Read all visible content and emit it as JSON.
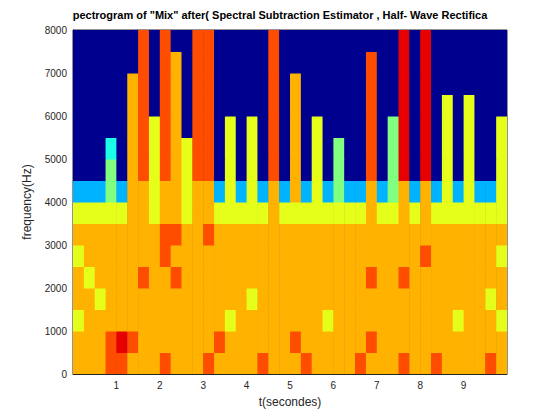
{
  "chart_data": {
    "type": "heatmap",
    "title": "pectrogram of \"Mix\" after( Spectral Subtraction Estimator , Half- Wave Rectifica",
    "x_label": "t(secondes)",
    "y_label": "frequency(Hz)",
    "xlim": [
      0,
      10
    ],
    "xticks": [
      1,
      2,
      3,
      4,
      5,
      6,
      7,
      8,
      9
    ],
    "ylim": [
      0,
      8000
    ],
    "yticks": [
      0,
      1000,
      2000,
      3000,
      4000,
      5000,
      6000,
      7000,
      8000
    ],
    "grid": false,
    "clim": [
      0,
      10
    ],
    "x_bins": [
      0,
      0.25,
      0.5,
      0.75,
      1,
      1.25,
      1.5,
      1.75,
      2,
      2.25,
      2.5,
      2.75,
      3,
      3.25,
      3.5,
      3.75,
      4,
      4.25,
      4.5,
      4.75,
      5,
      5.25,
      5.5,
      5.75,
      6,
      6.25,
      6.5,
      6.75,
      7,
      7.25,
      7.5,
      7.75,
      8,
      8.25,
      8.5,
      8.75,
      9,
      9.25,
      9.5,
      9.75,
      10
    ],
    "y_bins": [
      0,
      500,
      1000,
      1500,
      2000,
      2500,
      3000,
      3500,
      4000,
      4500,
      5000,
      5500,
      6000,
      6500,
      7000,
      7500,
      8000
    ],
    "cells": [
      [
        7,
        7,
        7,
        8,
        8,
        7,
        7,
        7,
        8,
        7,
        7,
        7,
        8,
        7,
        7,
        7,
        7,
        8,
        7,
        7,
        7,
        8,
        7,
        7,
        7,
        7,
        8,
        7,
        7,
        7,
        8,
        7,
        7,
        8,
        7,
        7,
        7,
        7,
        8,
        7
      ],
      [
        7,
        7,
        7,
        8,
        9,
        8,
        7,
        7,
        7,
        7,
        7,
        7,
        7,
        8,
        7,
        7,
        7,
        7,
        7,
        7,
        8,
        7,
        7,
        7,
        7,
        7,
        7,
        8,
        7,
        7,
        7,
        7,
        7,
        7,
        7,
        7,
        7,
        7,
        7,
        7
      ],
      [
        6,
        7,
        7,
        7,
        7,
        7,
        7,
        7,
        7,
        7,
        7,
        7,
        7,
        7,
        6,
        7,
        7,
        7,
        7,
        7,
        7,
        7,
        7,
        6,
        7,
        7,
        7,
        7,
        7,
        7,
        7,
        7,
        7,
        7,
        7,
        6,
        7,
        7,
        7,
        6
      ],
      [
        7,
        7,
        6,
        7,
        7,
        7,
        7,
        7,
        7,
        7,
        7,
        7,
        7,
        7,
        7,
        7,
        6,
        7,
        7,
        7,
        7,
        7,
        7,
        7,
        7,
        7,
        7,
        7,
        7,
        7,
        7,
        7,
        7,
        7,
        7,
        7,
        7,
        7,
        6,
        7
      ],
      [
        7,
        6,
        7,
        7,
        7,
        7,
        8,
        7,
        7,
        8,
        7,
        7,
        7,
        7,
        7,
        7,
        7,
        7,
        7,
        7,
        7,
        7,
        7,
        7,
        7,
        7,
        7,
        8,
        7,
        7,
        8,
        7,
        7,
        7,
        7,
        7,
        7,
        7,
        7,
        7
      ],
      [
        6,
        7,
        7,
        7,
        7,
        7,
        7,
        7,
        8,
        7,
        7,
        7,
        7,
        7,
        7,
        7,
        7,
        7,
        7,
        7,
        7,
        7,
        7,
        7,
        7,
        7,
        7,
        7,
        7,
        7,
        7,
        7,
        8,
        7,
        7,
        7,
        7,
        7,
        7,
        6
      ],
      [
        7,
        7,
        7,
        7,
        7,
        7,
        7,
        7,
        8,
        8,
        7,
        7,
        8,
        7,
        7,
        7,
        7,
        7,
        7,
        7,
        7,
        7,
        7,
        7,
        7,
        7,
        7,
        7,
        7,
        7,
        7,
        7,
        7,
        7,
        7,
        7,
        7,
        7,
        7,
        7
      ],
      [
        6,
        6,
        6,
        6,
        6,
        7,
        7,
        6,
        7,
        7,
        6,
        7,
        7,
        6,
        6,
        6,
        6,
        6,
        7,
        6,
        6,
        6,
        6,
        6,
        6,
        6,
        6,
        7,
        6,
        6,
        7,
        6,
        7,
        6,
        6,
        6,
        6,
        6,
        6,
        6
      ],
      [
        3,
        3,
        3,
        5,
        3,
        7,
        7,
        6,
        7,
        7,
        6,
        7,
        7,
        3,
        6,
        3,
        6,
        3,
        7,
        3,
        7,
        3,
        6,
        3,
        5,
        3,
        3,
        7,
        3,
        5,
        7,
        3,
        7,
        3,
        6,
        3,
        6,
        3,
        3,
        6
      ],
      [
        0,
        0,
        0,
        5,
        0,
        7,
        8,
        6,
        8,
        7,
        6,
        8,
        8,
        0,
        6,
        0,
        6,
        0,
        8,
        0,
        7,
        0,
        6,
        0,
        5,
        0,
        0,
        8,
        0,
        5,
        9,
        0,
        9,
        0,
        6,
        0,
        6,
        0,
        0,
        6
      ],
      [
        0,
        0,
        0,
        4,
        0,
        7,
        8,
        6,
        8,
        7,
        6,
        8,
        8,
        0,
        6,
        0,
        6,
        0,
        8,
        0,
        7,
        0,
        6,
        0,
        5,
        0,
        0,
        8,
        0,
        5,
        9,
        0,
        9,
        0,
        6,
        0,
        6,
        0,
        0,
        6
      ],
      [
        0,
        0,
        0,
        0,
        0,
        7,
        8,
        6,
        8,
        7,
        0,
        8,
        8,
        0,
        6,
        0,
        6,
        0,
        8,
        0,
        7,
        0,
        6,
        0,
        0,
        0,
        0,
        8,
        0,
        5,
        9,
        0,
        9,
        0,
        6,
        0,
        6,
        0,
        0,
        6
      ],
      [
        0,
        0,
        0,
        0,
        0,
        7,
        8,
        0,
        8,
        7,
        0,
        8,
        8,
        0,
        0,
        0,
        0,
        0,
        8,
        0,
        7,
        0,
        0,
        0,
        0,
        0,
        0,
        8,
        0,
        0,
        9,
        0,
        9,
        0,
        6,
        0,
        6,
        0,
        0,
        0
      ],
      [
        0,
        0,
        0,
        0,
        0,
        7,
        8,
        0,
        8,
        7,
        0,
        8,
        8,
        0,
        0,
        0,
        0,
        0,
        8,
        0,
        7,
        0,
        0,
        0,
        0,
        0,
        0,
        8,
        0,
        0,
        9,
        0,
        9,
        0,
        0,
        0,
        0,
        0,
        0,
        0
      ],
      [
        0,
        0,
        0,
        0,
        0,
        0,
        8,
        0,
        8,
        7,
        0,
        8,
        8,
        0,
        0,
        0,
        0,
        0,
        8,
        0,
        0,
        0,
        0,
        0,
        0,
        0,
        0,
        8,
        0,
        0,
        9,
        0,
        9,
        0,
        0,
        0,
        0,
        0,
        0,
        0
      ],
      [
        0,
        0,
        0,
        0,
        0,
        0,
        8,
        0,
        8,
        0,
        0,
        8,
        8,
        0,
        0,
        0,
        0,
        0,
        8,
        0,
        0,
        0,
        0,
        0,
        0,
        0,
        0,
        0,
        0,
        0,
        9,
        0,
        9,
        0,
        0,
        0,
        0,
        0,
        0,
        0
      ]
    ]
  }
}
